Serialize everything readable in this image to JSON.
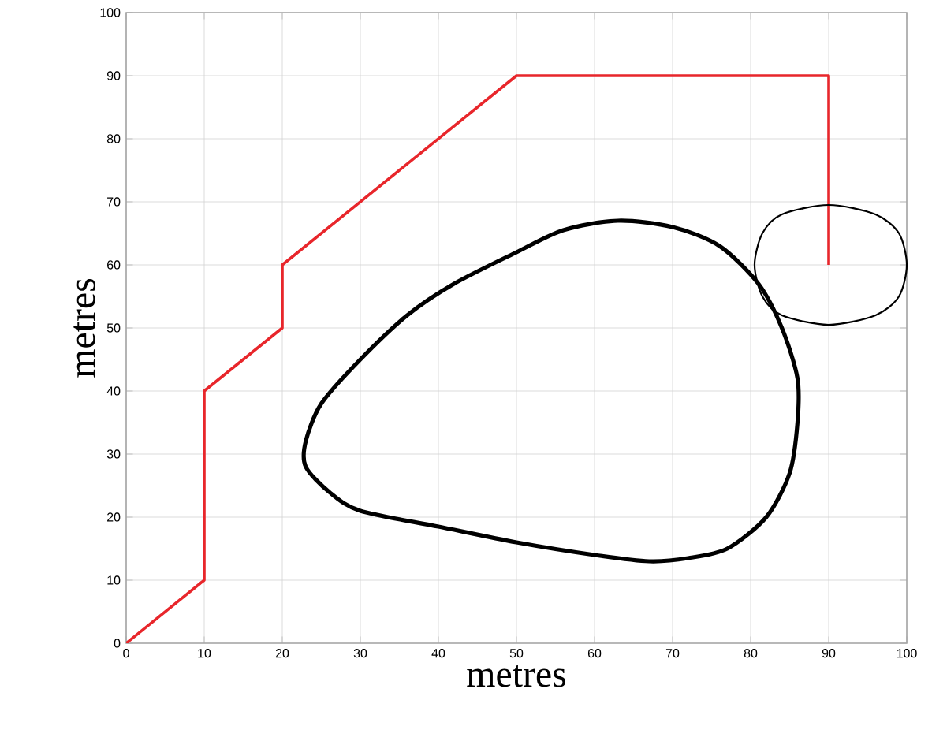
{
  "chart_data": {
    "type": "line",
    "xlabel": "metres",
    "ylabel": "metres",
    "xlim": [
      0,
      100
    ],
    "ylim": [
      0,
      100
    ],
    "xticks": [
      0,
      10,
      20,
      30,
      40,
      50,
      60,
      70,
      80,
      90,
      100
    ],
    "yticks": [
      0,
      10,
      20,
      30,
      40,
      50,
      60,
      70,
      80,
      90,
      100
    ],
    "grid": true,
    "series": [
      {
        "color": "#e8262b",
        "x": [
          0,
          10,
          10,
          20,
          20,
          50,
          90,
          90
        ],
        "values": [
          0,
          10,
          40,
          50,
          60,
          90,
          90,
          60
        ]
      }
    ]
  }
}
